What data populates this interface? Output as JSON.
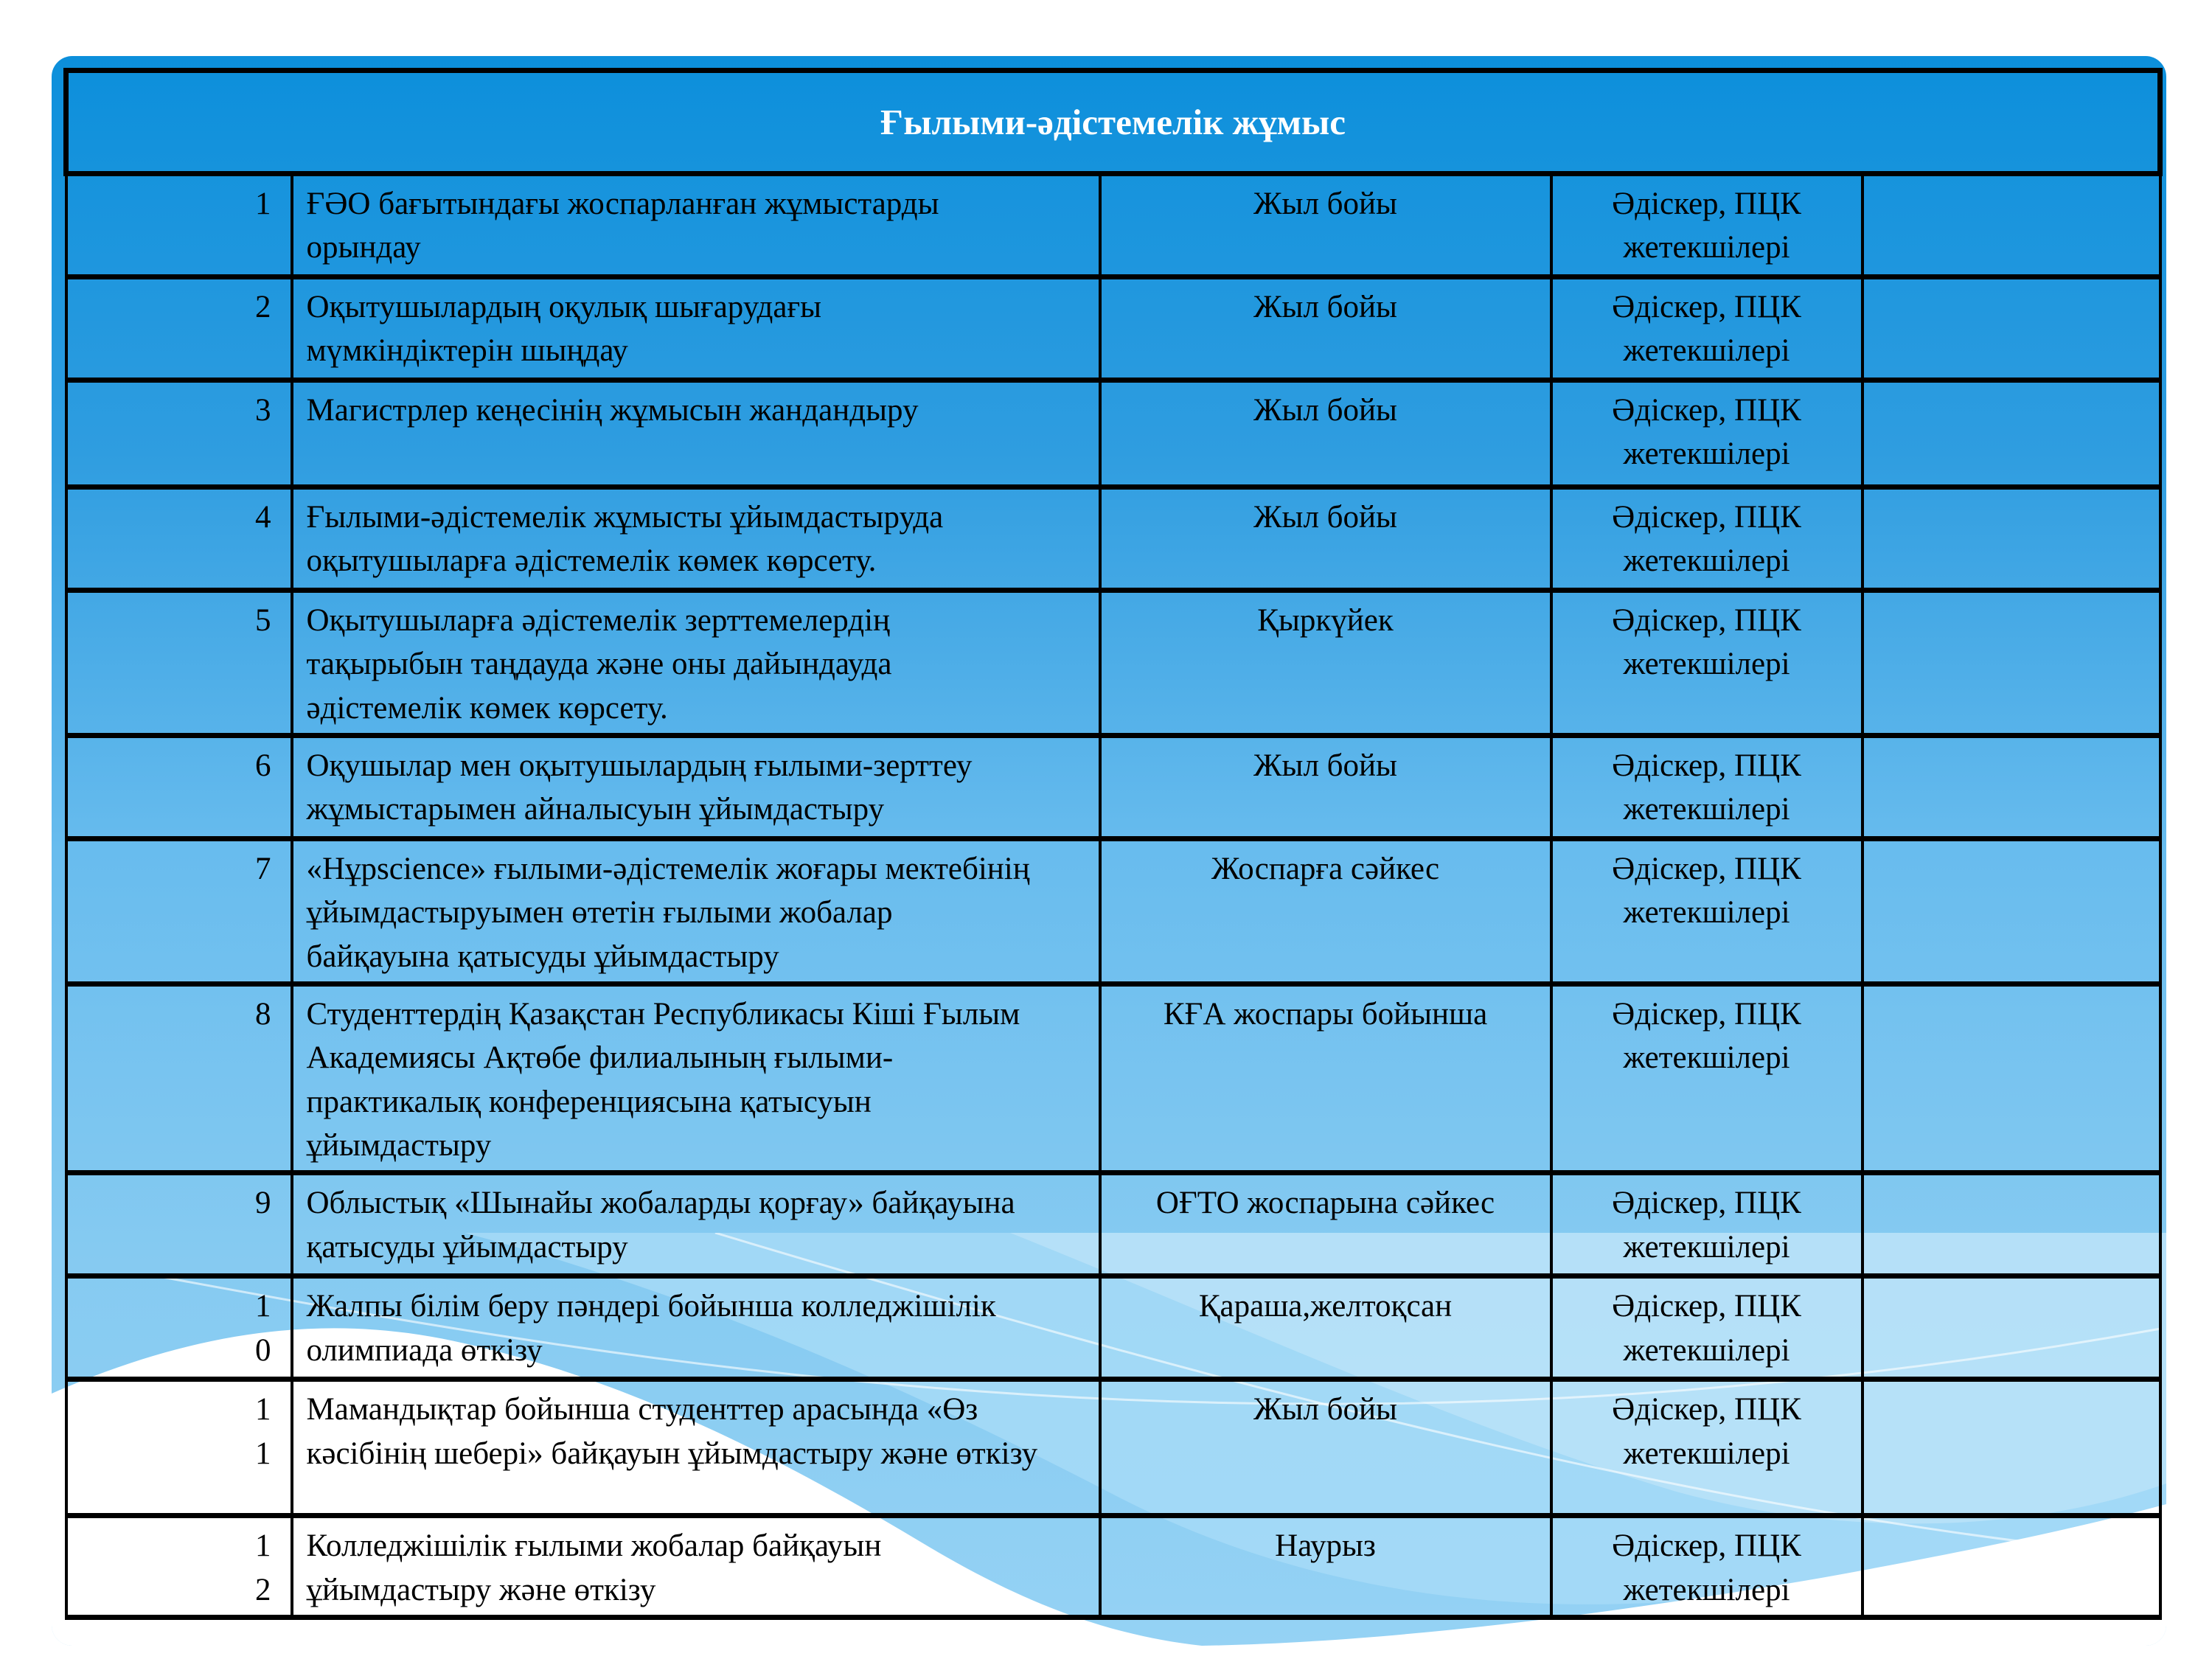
{
  "header": {
    "title": "Ғылыми-әдістемелік жұмыс"
  },
  "colors": {
    "panel_top": "#0c8fdb",
    "panel_mid": "#68bcee",
    "panel_bottom": "#95d2f4",
    "wave_light": "#a6dbf7",
    "wave_lighter": "#c6e8fa",
    "wave_white": "#ffffff",
    "border": "#000000",
    "title_text": "#ffffff",
    "body_text": "#000000"
  },
  "table": {
    "rows": [
      {
        "num": "1",
        "task": "ҒӘО бағытындағы жоспарланған жұмыстарды\nорындау",
        "timing": "Жыл бойы",
        "responsible": "Әдіскер, ПЦК\nжетекшілері"
      },
      {
        "num": "2",
        "task": "Оқытушылардың оқулық шығарудағы\nмүмкіндіктерін шыңдау",
        "timing": "Жыл бойы",
        "responsible": "Әдіскер, ПЦК\nжетекшілері"
      },
      {
        "num": "3",
        "task": "Магистрлер кеңесінің жұмысын жандандыру",
        "timing": "Жыл бойы",
        "responsible": "Әдіскер, ПЦК\nжетекшілері"
      },
      {
        "num": "4",
        "task": "Ғылыми-әдістемелік жұмысты ұйымдастыруда\nоқытушыларға әдістемелік көмек көрсету.",
        "timing": "Жыл бойы",
        "responsible": "Әдіскер, ПЦК\nжетекшілері"
      },
      {
        "num": "5",
        "task": "Оқытушыларға әдістемелік зерттемелердің\nтақырыбын таңдауда және оны дайындауда\nәдістемелік көмек көрсету.",
        "timing": "Қыркүйек",
        "responsible": "Әдіскер, ПЦК\nжетекшілері"
      },
      {
        "num": "6",
        "task": "Оқушылар мен оқытушылардың ғылыми-зерттеу\nжұмыстарымен айналысуын ұйымдастыру",
        "timing": "Жыл бойы",
        "responsible": "Әдіскер, ПЦК\nжетекшілері"
      },
      {
        "num": "7",
        "task": "«Нұрscience» ғылыми-әдістемелік жоғары мектебінің\nұйымдастыруымен өтетін ғылыми жобалар\nбайқауына қатысуды ұйымдастыру",
        "timing": "Жоспарға сәйкес",
        "responsible": "Әдіскер, ПЦК\nжетекшілері"
      },
      {
        "num": "8",
        "task": "Студенттердің Қазақстан Республикасы Кіші Ғылым\nАкадемиясы Ақтөбе филиалының ғылыми-\nпрактикалық конференциясына қатысуын\nұйымдастыру",
        "timing": "КҒА жоспары бойынша",
        "responsible": "Әдіскер, ПЦК\nжетекшілері"
      },
      {
        "num": "9",
        "task": "Облыстық «Шынайы жобаларды қорғау» байқауына\nқатысуды ұйымдастыру",
        "timing": "ОҒТО жоспарына сәйкес",
        "responsible": "Әдіскер, ПЦК\nжетекшілері"
      },
      {
        "num": "1\n0",
        "task": "Жалпы білім беру пәндері бойынша колледжішілік\nолимпиада өткізу",
        "timing": "Қараша,желтоқсан",
        "responsible": "Әдіскер, ПЦК\nжетекшілері"
      },
      {
        "num": "1\n1",
        "task": "Мамандықтар бойынша студенттер арасында «Өз\nкәсібінің шебері» байқауын ұйымдастыру және өткізу",
        "timing": "Жыл бойы",
        "responsible": "Әдіскер, ПЦК\nжетекшілері"
      },
      {
        "num": "1\n2",
        "task": "Колледжішілік ғылыми жобалар байқауын\nұйымдастыру және өткізу",
        "timing": "Наурыз",
        "responsible": "Әдіскер, ПЦК\nжетекшілері"
      }
    ]
  }
}
